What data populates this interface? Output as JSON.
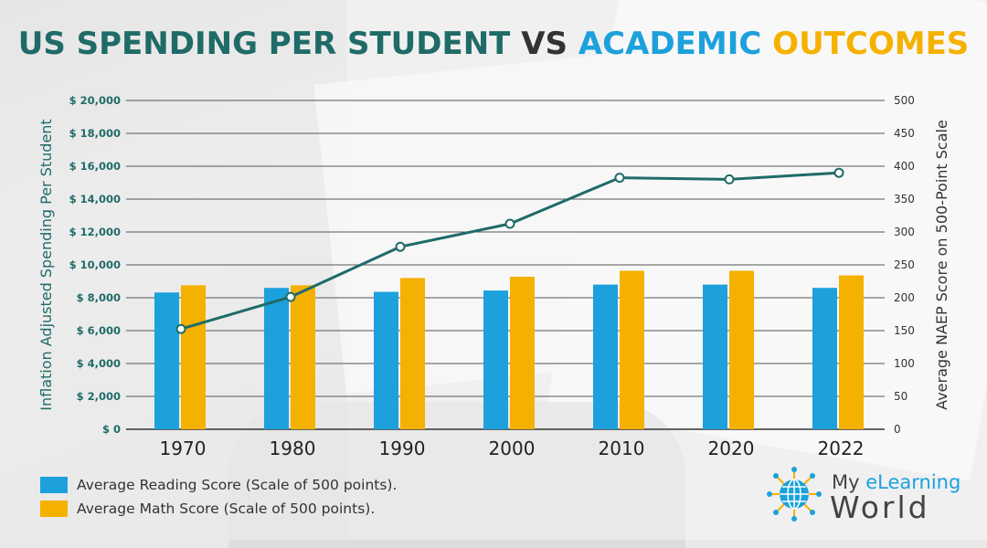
{
  "title": {
    "part1": "US SPENDING PER STUDENT",
    "part2": "VS",
    "part3": "ACADEMIC",
    "part4": "OUTCOMES"
  },
  "colors": {
    "title_teal": "#1f6b68",
    "reading": "#1da1dc",
    "math": "#f5b100",
    "spending_line": "#1f6b68"
  },
  "chart_data": {
    "type": "bar",
    "categories": [
      "1970",
      "1980",
      "1990",
      "2000",
      "2010",
      "2020",
      "2022"
    ],
    "ylabel_left": "Inflation Adjusted Spending Per Student",
    "ylabel_right": "Average NAEP Score on 500-Point Scale",
    "ylim_left": [
      0,
      20000
    ],
    "ylim_right": [
      0,
      500
    ],
    "left_ticks": [
      "$ 0",
      "$ 2,000",
      "$ 4,000",
      "$ 6,000",
      "$ 8,000",
      "$ 10,000",
      "$ 12,000",
      "$ 14,000",
      "$ 16,000",
      "$ 18,000",
      "$ 20,000"
    ],
    "right_ticks": [
      "0",
      "50",
      "100",
      "150",
      "200",
      "250",
      "300",
      "350",
      "400",
      "450",
      "500"
    ],
    "grid": true,
    "series": [
      {
        "name": "Average Reading Score (Scale of 500 points).",
        "type": "bar",
        "axis": "right",
        "values": [
          208,
          215,
          209,
          211,
          220,
          220,
          215
        ]
      },
      {
        "name": "Average Math Score (Scale of 500 points).",
        "type": "bar",
        "axis": "right",
        "values": [
          219,
          219,
          230,
          232,
          241,
          241,
          234
        ]
      },
      {
        "type": "line",
        "axis": "left",
        "values": [
          6100,
          8050,
          11100,
          12500,
          15300,
          15200,
          15600
        ]
      }
    ]
  },
  "legend": {
    "reading": "Average Reading Score (Scale of 500 points).",
    "math": "Average Math Score (Scale of 500 points)."
  },
  "logo": {
    "line1_a": "My ",
    "line1_b": "eLearning",
    "line2": "World"
  }
}
